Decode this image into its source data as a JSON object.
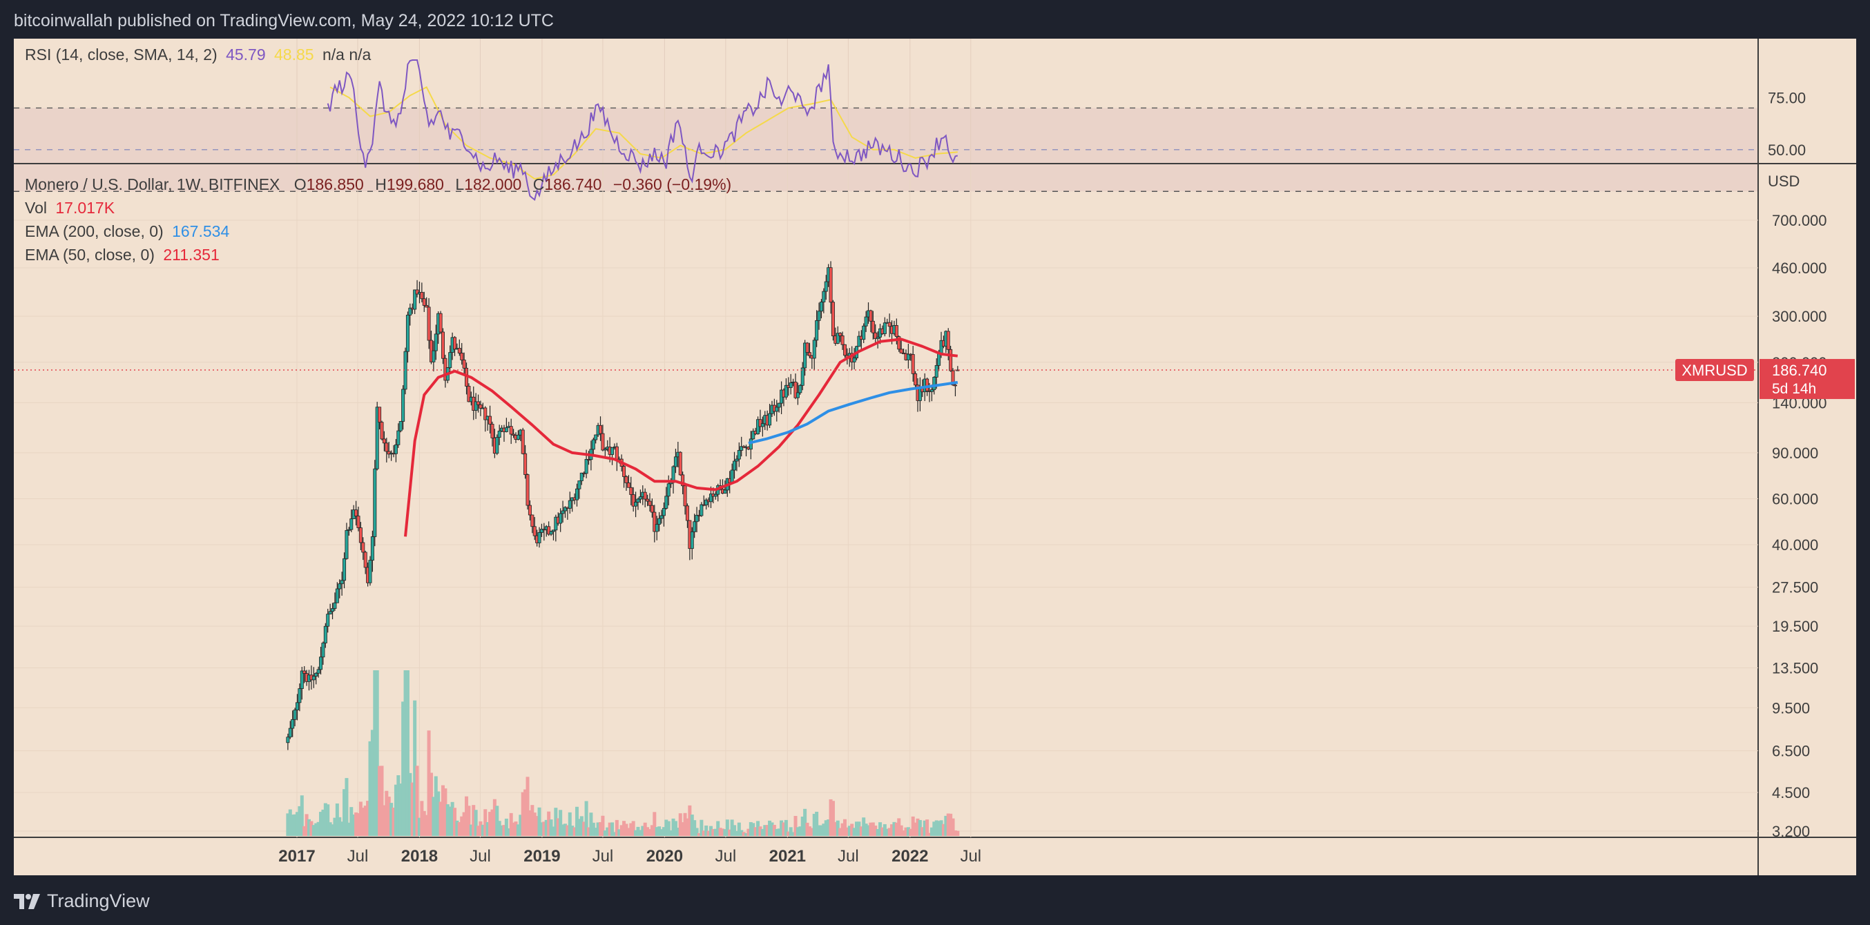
{
  "header": {
    "attribution": "bitcoinwallah published on TradingView.com, May 24, 2022 10:12 UTC"
  },
  "footer": {
    "brand": "TradingView",
    "logo_icon": "tradingview-logo-icon"
  },
  "rsi_legend": {
    "label": "RSI (14, close, SMA, 14, 2)",
    "rsi_value": "45.79",
    "sma_value": "48.85",
    "na1": "n/a",
    "na2": "n/a",
    "rsi_color": "#7e57c2",
    "sma_color": "#f5d94a"
  },
  "main_legend": {
    "symbol": "Monero / U.S. Dollar, 1W, BITFINEX",
    "o_label": "O",
    "o_value": "186.850",
    "h_label": "H",
    "h_value": "199.680",
    "l_label": "L",
    "l_value": "182.000",
    "c_label": "C",
    "c_value": "186.740",
    "change": "−0.360 (−0.19%)",
    "vol_label": "Vol",
    "vol_value": "17.017K",
    "ema200_label": "EMA (200, close, 0)",
    "ema200_value": "167.534",
    "ema50_label": "EMA (50, close, 0)",
    "ema50_value": "211.351"
  },
  "price_tag": {
    "symbol": "XMRUSD",
    "price": "186.740",
    "countdown": "5d 14h"
  },
  "colors": {
    "up": "#26a69a",
    "down": "#ef5350",
    "ema50": "#e5283a",
    "ema200": "#2e8fe6",
    "background": "#f2e1d0",
    "accent_tag": "#e1434d"
  },
  "chart_data": {
    "type": "candlestick",
    "title": "Monero / U.S. Dollar, 1W, BITFINEX",
    "y_axis_unit": "USD",
    "y_scale": "log",
    "y_ticks": [
      "700.000",
      "460.000",
      "300.000",
      "200.000",
      "140.000",
      "90.000",
      "60.000",
      "40.000",
      "27.500",
      "19.500",
      "13.500",
      "9.500",
      "6.500",
      "4.500",
      "3.200"
    ],
    "x_ticks": [
      {
        "label": "2017",
        "date": "2017-01-01",
        "year": true
      },
      {
        "label": "Jul",
        "date": "2017-07-01",
        "year": false
      },
      {
        "label": "2018",
        "date": "2018-01-01",
        "year": true
      },
      {
        "label": "Jul",
        "date": "2018-07-01",
        "year": false
      },
      {
        "label": "2019",
        "date": "2019-01-01",
        "year": true
      },
      {
        "label": "Jul",
        "date": "2019-07-01",
        "year": false
      },
      {
        "label": "2020",
        "date": "2020-01-01",
        "year": true
      },
      {
        "label": "Jul",
        "date": "2020-07-01",
        "year": false
      },
      {
        "label": "2021",
        "date": "2021-01-01",
        "year": true
      },
      {
        "label": "Jul",
        "date": "2021-07-01",
        "year": false
      },
      {
        "label": "2022",
        "date": "2022-01-01",
        "year": true
      },
      {
        "label": "Jul",
        "date": "2022-07-01",
        "year": false
      }
    ],
    "close_anchors": [
      [
        "2016-12-05",
        7.2
      ],
      [
        "2016-12-26",
        9.0
      ],
      [
        "2017-01-16",
        13.5
      ],
      [
        "2017-02-06",
        12.0
      ],
      [
        "2017-03-06",
        13.0
      ],
      [
        "2017-03-27",
        20.0
      ],
      [
        "2017-04-24",
        24.0
      ],
      [
        "2017-05-15",
        30.0
      ],
      [
        "2017-05-29",
        45.0
      ],
      [
        "2017-06-19",
        55.0
      ],
      [
        "2017-07-10",
        42.0
      ],
      [
        "2017-07-31",
        28.0
      ],
      [
        "2017-08-14",
        45.0
      ],
      [
        "2017-08-28",
        135.0
      ],
      [
        "2017-09-18",
        95.0
      ],
      [
        "2017-10-16",
        92.0
      ],
      [
        "2017-11-06",
        115.0
      ],
      [
        "2017-11-27",
        300.0
      ],
      [
        "2017-12-25",
        380.0
      ],
      [
        "2018-01-22",
        310.0
      ],
      [
        "2018-02-05",
        200.0
      ],
      [
        "2018-02-26",
        300.0
      ],
      [
        "2018-03-19",
        180.0
      ],
      [
        "2018-04-09",
        240.0
      ],
      [
        "2018-05-07",
        200.0
      ],
      [
        "2018-05-28",
        145.0
      ],
      [
        "2018-06-25",
        130.0
      ],
      [
        "2018-07-23",
        125.0
      ],
      [
        "2018-08-13",
        95.0
      ],
      [
        "2018-09-03",
        115.0
      ],
      [
        "2018-10-01",
        110.0
      ],
      [
        "2018-10-29",
        105.0
      ],
      [
        "2018-11-19",
        58.0
      ],
      [
        "2018-12-10",
        42.0
      ],
      [
        "2019-01-21",
        45.0
      ],
      [
        "2019-02-18",
        50.0
      ],
      [
        "2019-03-25",
        57.0
      ],
      [
        "2019-04-22",
        70.0
      ],
      [
        "2019-05-27",
        95.0
      ],
      [
        "2019-06-17",
        110.0
      ],
      [
        "2019-07-08",
        90.0
      ],
      [
        "2019-08-05",
        92.0
      ],
      [
        "2019-09-02",
        75.0
      ],
      [
        "2019-10-07",
        55.0
      ],
      [
        "2019-11-04",
        62.0
      ],
      [
        "2019-12-02",
        47.0
      ],
      [
        "2020-01-06",
        60.0
      ],
      [
        "2020-02-10",
        90.0
      ],
      [
        "2020-02-24",
        65.0
      ],
      [
        "2020-03-16",
        40.0
      ],
      [
        "2020-04-13",
        55.0
      ],
      [
        "2020-05-11",
        62.0
      ],
      [
        "2020-06-15",
        65.0
      ],
      [
        "2020-07-13",
        72.0
      ],
      [
        "2020-08-03",
        90.0
      ],
      [
        "2020-08-31",
        95.0
      ],
      [
        "2020-10-05",
        115.0
      ],
      [
        "2020-11-02",
        120.0
      ],
      [
        "2020-12-07",
        145.0
      ],
      [
        "2021-01-11",
        165.0
      ],
      [
        "2021-02-01",
        150.0
      ],
      [
        "2021-02-22",
        230.0
      ],
      [
        "2021-03-15",
        220.0
      ],
      [
        "2021-04-12",
        340.0
      ],
      [
        "2021-05-03",
        440.0
      ],
      [
        "2021-05-17",
        255.0
      ],
      [
        "2021-06-07",
        240.0
      ],
      [
        "2021-06-28",
        215.0
      ],
      [
        "2021-07-19",
        210.0
      ],
      [
        "2021-08-09",
        260.0
      ],
      [
        "2021-08-30",
        310.0
      ],
      [
        "2021-09-20",
        250.0
      ],
      [
        "2021-10-18",
        270.0
      ],
      [
        "2021-11-15",
        270.0
      ],
      [
        "2021-12-06",
        220.0
      ],
      [
        "2022-01-03",
        210.0
      ],
      [
        "2022-01-24",
        145.0
      ],
      [
        "2022-02-14",
        165.0
      ],
      [
        "2022-03-07",
        155.0
      ],
      [
        "2022-03-28",
        220.0
      ],
      [
        "2022-04-18",
        250.0
      ],
      [
        "2022-05-09",
        155.0
      ],
      [
        "2022-05-23",
        186.74
      ]
    ],
    "ema50": [
      [
        "2017-11-20",
        43.0
      ],
      [
        "2017-12-18",
        100.0
      ],
      [
        "2018-01-15",
        150.0
      ],
      [
        "2018-02-26",
        175.0
      ],
      [
        "2018-04-16",
        185.0
      ],
      [
        "2018-06-04",
        175.0
      ],
      [
        "2018-08-06",
        155.0
      ],
      [
        "2018-10-01",
        135.0
      ],
      [
        "2018-12-03",
        115.0
      ],
      [
        "2019-02-04",
        97.0
      ],
      [
        "2019-04-01",
        90.0
      ],
      [
        "2019-06-03",
        88.0
      ],
      [
        "2019-08-05",
        85.0
      ],
      [
        "2019-10-07",
        78.0
      ],
      [
        "2019-12-02",
        70.0
      ],
      [
        "2020-02-03",
        70.0
      ],
      [
        "2020-04-06",
        66.0
      ],
      [
        "2020-06-01",
        65.0
      ],
      [
        "2020-08-03",
        70.0
      ],
      [
        "2020-10-05",
        80.0
      ],
      [
        "2020-12-07",
        95.0
      ],
      [
        "2021-02-01",
        115.0
      ],
      [
        "2021-04-05",
        150.0
      ],
      [
        "2021-06-07",
        200.0
      ],
      [
        "2021-08-02",
        220.0
      ],
      [
        "2021-10-04",
        240.0
      ],
      [
        "2021-12-06",
        245.0
      ],
      [
        "2022-02-07",
        230.0
      ],
      [
        "2022-04-04",
        215.0
      ],
      [
        "2022-05-23",
        211.351
      ]
    ],
    "ema200": [
      [
        "2020-09-07",
        98.0
      ],
      [
        "2020-11-02",
        102.0
      ],
      [
        "2021-01-04",
        108.0
      ],
      [
        "2021-03-01",
        116.0
      ],
      [
        "2021-05-03",
        130.0
      ],
      [
        "2021-07-05",
        138.0
      ],
      [
        "2021-09-06",
        146.0
      ],
      [
        "2021-11-01",
        153.0
      ],
      [
        "2022-01-03",
        158.0
      ],
      [
        "2022-03-07",
        162.0
      ],
      [
        "2022-05-23",
        167.534
      ]
    ],
    "volume": {
      "label": "Vol",
      "last": "17.017K"
    },
    "rsi": {
      "label": "RSI (14, close, SMA, 14, 2)",
      "levels": [
        "75.00",
        "50.00"
      ],
      "upper_band": 70,
      "lower_band": 30,
      "range": [
        25,
        95
      ],
      "rsi_anchors": [
        [
          "2017-04-03",
          70
        ],
        [
          "2017-04-24",
          78
        ],
        [
          "2017-05-22",
          82
        ],
        [
          "2017-06-12",
          85
        ],
        [
          "2017-07-03",
          60
        ],
        [
          "2017-07-24",
          45
        ],
        [
          "2017-08-14",
          55
        ],
        [
          "2017-09-04",
          80
        ],
        [
          "2017-10-02",
          64
        ],
        [
          "2017-11-06",
          66
        ],
        [
          "2017-11-27",
          88
        ],
        [
          "2017-12-25",
          92
        ],
        [
          "2018-01-29",
          62
        ],
        [
          "2018-03-05",
          68
        ],
        [
          "2018-04-02",
          56
        ],
        [
          "2018-05-07",
          58
        ],
        [
          "2018-06-11",
          48
        ],
        [
          "2018-07-16",
          40
        ],
        [
          "2018-08-20",
          46
        ],
        [
          "2018-09-24",
          40
        ],
        [
          "2018-11-05",
          42
        ],
        [
          "2018-11-26",
          30
        ],
        [
          "2018-12-17",
          28
        ],
        [
          "2019-01-21",
          38
        ],
        [
          "2019-03-04",
          46
        ],
        [
          "2019-04-29",
          55
        ],
        [
          "2019-05-27",
          64
        ],
        [
          "2019-06-24",
          70
        ],
        [
          "2019-08-05",
          55
        ],
        [
          "2019-09-16",
          48
        ],
        [
          "2019-10-28",
          42
        ],
        [
          "2019-11-25",
          48
        ],
        [
          "2020-01-06",
          45
        ],
        [
          "2020-02-10",
          66
        ],
        [
          "2020-03-16",
          36
        ],
        [
          "2020-04-20",
          52
        ],
        [
          "2020-06-01",
          48
        ],
        [
          "2020-07-13",
          54
        ],
        [
          "2020-08-24",
          66
        ],
        [
          "2020-10-05",
          72
        ],
        [
          "2020-11-09",
          82
        ],
        [
          "2020-12-14",
          70
        ],
        [
          "2021-01-11",
          82
        ],
        [
          "2021-02-22",
          66
        ],
        [
          "2021-03-29",
          76
        ],
        [
          "2021-05-03",
          90
        ],
        [
          "2021-05-17",
          50
        ],
        [
          "2021-06-21",
          48
        ],
        [
          "2021-07-26",
          46
        ],
        [
          "2021-09-06",
          52
        ],
        [
          "2021-10-18",
          50
        ],
        [
          "2021-11-29",
          46
        ],
        [
          "2022-01-10",
          40
        ],
        [
          "2022-02-14",
          44
        ],
        [
          "2022-03-28",
          54
        ],
        [
          "2022-04-18",
          58
        ],
        [
          "2022-05-09",
          42
        ],
        [
          "2022-05-23",
          45.79
        ]
      ],
      "sma_anchors": [
        [
          "2017-04-10",
          80
        ],
        [
          "2017-06-05",
          75
        ],
        [
          "2017-08-07",
          66
        ],
        [
          "2017-10-02",
          68
        ],
        [
          "2017-12-04",
          76
        ],
        [
          "2018-01-22",
          80
        ],
        [
          "2018-03-19",
          62
        ],
        [
          "2018-05-21",
          52
        ],
        [
          "2018-07-30",
          46
        ],
        [
          "2018-10-08",
          43
        ],
        [
          "2018-12-10",
          36
        ],
        [
          "2019-02-04",
          38
        ],
        [
          "2019-04-08",
          48
        ],
        [
          "2019-06-10",
          60
        ],
        [
          "2019-08-19",
          58
        ],
        [
          "2019-10-21",
          48
        ],
        [
          "2019-12-23",
          46
        ],
        [
          "2020-02-17",
          52
        ],
        [
          "2020-04-20",
          48
        ],
        [
          "2020-06-29",
          50
        ],
        [
          "2020-08-31",
          58
        ],
        [
          "2020-11-02",
          64
        ],
        [
          "2021-01-04",
          70
        ],
        [
          "2021-03-15",
          72
        ],
        [
          "2021-05-10",
          74
        ],
        [
          "2021-07-12",
          56
        ],
        [
          "2021-09-13",
          50
        ],
        [
          "2021-11-15",
          50
        ],
        [
          "2022-01-17",
          46
        ],
        [
          "2022-03-21",
          48
        ],
        [
          "2022-05-23",
          48.85
        ]
      ]
    }
  }
}
